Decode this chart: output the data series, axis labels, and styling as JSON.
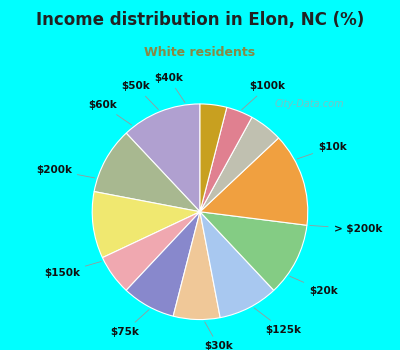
{
  "title": "Income distribution in Elon, NC (%)",
  "subtitle": "White residents",
  "watermark": "City-Data.com",
  "bg_cyan": "#00FFFF",
  "bg_inner": "#e0f0e8",
  "title_color": "#222222",
  "subtitle_color": "#888844",
  "labels": [
    "$100k",
    "$10k",
    "> $200k",
    "$20k",
    "$125k",
    "$30k",
    "$75k",
    "$150k",
    "$200k",
    "$60k",
    "$50k",
    "$40k"
  ],
  "values": [
    12,
    10,
    10,
    6,
    8,
    7,
    9,
    11,
    14,
    5,
    4,
    4
  ],
  "colors": [
    "#b0a0d0",
    "#a8b890",
    "#f0e870",
    "#f0a8b0",
    "#8888cc",
    "#f0c898",
    "#a8c8f0",
    "#84cc84",
    "#f0a040",
    "#c0c0b0",
    "#e08090",
    "#c8a020"
  ],
  "label_fontsize": 7.5,
  "title_fontsize": 12,
  "subtitle_fontsize": 9
}
